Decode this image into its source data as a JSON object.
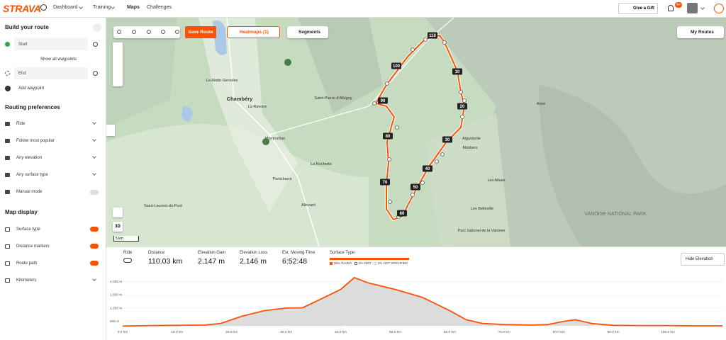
{
  "nav": {
    "logo": "STRAVA",
    "items": [
      "Dashboard",
      "Training",
      "Maps",
      "Challenges"
    ],
    "gift": "Give a Gift",
    "notif_badge": "9+"
  },
  "sidebar": {
    "title": "Build your route",
    "start": "Start",
    "show_waypoints": "Show all waypoints",
    "end": "End",
    "add_waypoint": "Add waypoint",
    "routing_title": "Routing preferences",
    "routing": [
      "Ride",
      "Follow most popular",
      "Any elevation",
      "Any surface type",
      "Manual mode"
    ],
    "display_title": "Map display",
    "display": [
      "Surface type",
      "Distance markers",
      "Route path",
      "Kilometers"
    ]
  },
  "toolbar": {
    "save": "Save Route",
    "heatmaps": "Heatmaps (1)",
    "segments": "Segments",
    "my_routes": "My Routes",
    "view_3d": "3D",
    "scale": "5 km"
  },
  "map": {
    "places": [
      "Chambéry",
      "La Ravoire",
      "La Motte-Servolex",
      "Montmélian",
      "La Rochette",
      "Pontcharra",
      "Allevard",
      "Saint-Laurent-du-Pont",
      "Saint-Pierre-d'Albigny",
      "Aiguebelle",
      "Moûtiers",
      "Aime",
      "Les Allues",
      "Les Belleville",
      "Parc national de la Vanoise",
      "VANOISE NATIONAL PARK"
    ],
    "markers": [
      10,
      20,
      30,
      40,
      50,
      60,
      70,
      80,
      90,
      100,
      110
    ]
  },
  "stats": {
    "sport": "Ride",
    "items": [
      {
        "label": "Distance",
        "value": "110.03 km"
      },
      {
        "label": "Elevation Gain",
        "value": "2,147 m"
      },
      {
        "label": "Elevation Loss",
        "value": "2,146 m"
      },
      {
        "label": "Est. Moving Time",
        "value": "6:52:48"
      }
    ],
    "surface_title": "Surface Type",
    "surface": [
      "95% PAVED",
      "0% DIRT",
      "5% NOT SPECIFIED"
    ],
    "hide": "Hide Elevation"
  },
  "elevation_chart": {
    "type": "area",
    "x": [
      0,
      5,
      10,
      15,
      18,
      22,
      26,
      30,
      33,
      36,
      40,
      42.5,
      45,
      50,
      55,
      60,
      63,
      66,
      70,
      75,
      78,
      81,
      83,
      86,
      90,
      95,
      100,
      105,
      110.03
    ],
    "values": [
      320,
      340,
      350,
      360,
      420,
      700,
      900,
      1000,
      1010,
      1300,
      1700,
      2147,
      1950,
      1700,
      1400,
      900,
      560,
      420,
      380,
      360,
      380,
      500,
      560,
      420,
      350,
      340,
      340,
      330,
      330
    ],
    "color": "#fc5200",
    "xlim": [
      0,
      110.03
    ],
    "ylim": [
      250,
      2250
    ],
    "xticks": [
      {
        "value": 0,
        "label": "0.0 km"
      },
      {
        "value": 10,
        "label": "10.0 km"
      },
      {
        "value": 20,
        "label": "20.0 km"
      },
      {
        "value": 30,
        "label": "30.0 km"
      },
      {
        "value": 40,
        "label": "40.0 km"
      },
      {
        "value": 50,
        "label": "50.0 km"
      },
      {
        "value": 60,
        "label": "60.0 km"
      },
      {
        "value": 70,
        "label": "70.0 km"
      },
      {
        "value": 80,
        "label": "80.0 km"
      },
      {
        "value": 90,
        "label": "90.0 km"
      },
      {
        "value": 100,
        "label": "100.0 km"
      }
    ],
    "yticks": [
      {
        "value": 500,
        "label": "500 m"
      },
      {
        "value": 1000,
        "label": "1,000 m"
      },
      {
        "value": 1500,
        "label": "1,500 m"
      },
      {
        "value": 2000,
        "label": "2,000 m"
      }
    ],
    "grid": true
  }
}
